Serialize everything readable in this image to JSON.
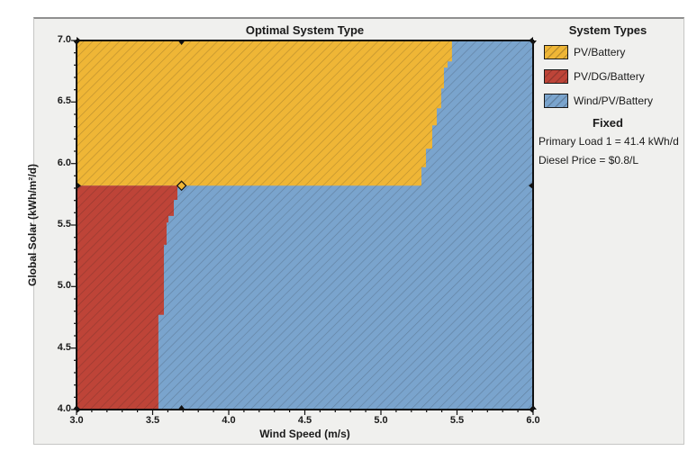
{
  "window": {
    "background": "#ffffff",
    "panel_background": "#f0f0ee"
  },
  "chart_data": {
    "type": "area",
    "title": "Optimal System Type",
    "xlabel": "Wind Speed (m/s)",
    "ylabel": "Global Solar (kWh/m²/d)",
    "xlim": [
      3.0,
      6.0
    ],
    "ylim": [
      4.0,
      7.0
    ],
    "x_tick_labels": [
      "3.0",
      "3.5",
      "4.0",
      "4.5",
      "5.0",
      "5.5",
      "6.0"
    ],
    "y_tick_labels": [
      "7.0",
      "6.5",
      "6.0",
      "5.5",
      "5.0",
      "4.5",
      "4.0"
    ],
    "minor_tick_step": 0.1,
    "grid": false,
    "legend_position": "right",
    "hatch": {
      "direction": "/",
      "spacing": 7,
      "color": "rgba(20,20,20,0.24)"
    },
    "regions": [
      {
        "name": "Wind/PV/Battery",
        "color": "#7aa4cd",
        "points": [
          [
            3.0,
            7.0
          ],
          [
            6.0,
            7.0
          ],
          [
            6.0,
            4.0
          ],
          [
            3.0,
            4.0
          ]
        ]
      },
      {
        "name": "PV/Battery",
        "color": "#efb636",
        "points": [
          [
            3.0,
            7.0
          ],
          [
            5.467,
            7.0
          ],
          [
            5.467,
            6.83
          ],
          [
            5.438,
            6.83
          ],
          [
            5.438,
            6.78
          ],
          [
            5.414,
            6.78
          ],
          [
            5.414,
            6.61
          ],
          [
            5.396,
            6.61
          ],
          [
            5.396,
            6.45
          ],
          [
            5.367,
            6.45
          ],
          [
            5.367,
            6.31
          ],
          [
            5.337,
            6.31
          ],
          [
            5.337,
            6.12
          ],
          [
            5.296,
            6.12
          ],
          [
            5.296,
            5.97
          ],
          [
            5.266,
            5.97
          ],
          [
            5.266,
            5.82
          ],
          [
            3.0,
            5.82
          ]
        ]
      },
      {
        "name": "PV/DG/Battery",
        "color": "#be4438",
        "points": [
          [
            3.0,
            5.82
          ],
          [
            3.663,
            5.82
          ],
          [
            3.663,
            5.705
          ],
          [
            3.639,
            5.705
          ],
          [
            3.639,
            5.574
          ],
          [
            3.604,
            5.574
          ],
          [
            3.604,
            5.52
          ],
          [
            3.592,
            5.52
          ],
          [
            3.592,
            5.34
          ],
          [
            3.574,
            5.34
          ],
          [
            3.574,
            4.77
          ],
          [
            3.538,
            4.77
          ],
          [
            3.538,
            4.0
          ],
          [
            3.0,
            4.0
          ]
        ]
      }
    ],
    "x_marker_values": [
      3.0,
      3.69,
      6.0
    ],
    "y_marker_values": [
      4.0,
      5.82,
      7.0
    ],
    "selected_point": {
      "wind": 3.69,
      "solar": 5.82,
      "fill": "#efb636"
    }
  },
  "legend": {
    "title": "System Types",
    "items": [
      {
        "label": "PV/Battery",
        "color": "#efb636"
      },
      {
        "label": "PV/DG/Battery",
        "color": "#be4438"
      },
      {
        "label": "Wind/PV/Battery",
        "color": "#7aa4cd"
      }
    ],
    "fixed_title": "Fixed",
    "fixed_lines": [
      "Primary Load 1 = 41.4 kWh/d",
      "Diesel Price = $0.8/L"
    ]
  }
}
